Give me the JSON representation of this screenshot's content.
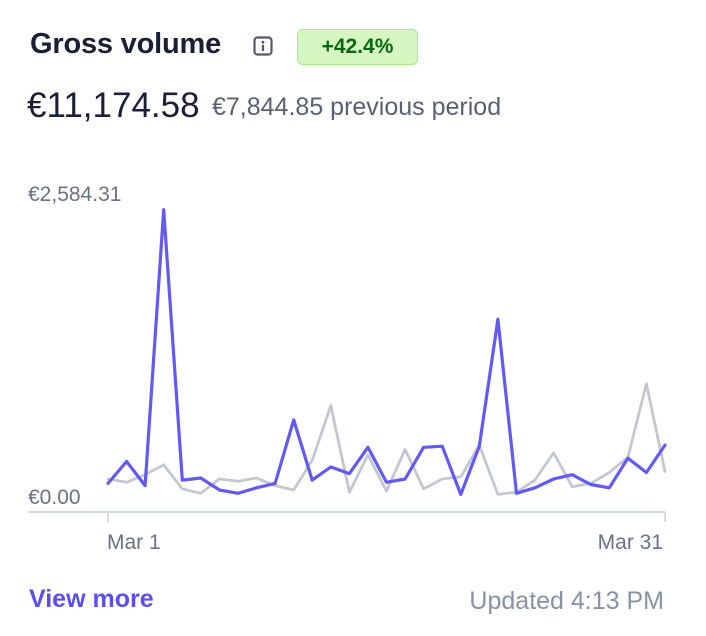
{
  "header": {
    "title": "Gross volume",
    "change_badge": "+42.4%",
    "total": "€11,174.58",
    "previous": "€7,844.85 previous period"
  },
  "footer": {
    "view_more": "View more",
    "updated": "Updated 4:13 PM"
  },
  "colors": {
    "current": "#625af5",
    "previous": "#c3c8d0",
    "badge_bg": "#d7f7c2",
    "badge_text": "#05690d",
    "link": "#5b4ef0"
  },
  "chart_data": {
    "type": "line",
    "y_max_label": "€2,584.31",
    "y_min_label": "€0.00",
    "x_start_label": "Mar 1",
    "x_end_label": "Mar 31",
    "ylim": [
      0,
      2584.31
    ],
    "series": [
      {
        "values": [
          60,
          260,
          40,
          2560,
          90,
          110,
          0,
          -30,
          20,
          60,
          640,
          90,
          210,
          150,
          390,
          70,
          100,
          390,
          400,
          -40,
          400,
          1560,
          -30,
          20,
          100,
          140,
          50,
          20,
          290,
          160,
          410
        ]
      },
      {
        "values": [
          100,
          70,
          140,
          230,
          10,
          -30,
          100,
          80,
          110,
          40,
          0,
          270,
          770,
          -20,
          320,
          -10,
          370,
          10,
          100,
          120,
          410,
          -40,
          -20,
          90,
          340,
          30,
          60,
          160,
          300,
          970,
          170
        ]
      }
    ]
  }
}
